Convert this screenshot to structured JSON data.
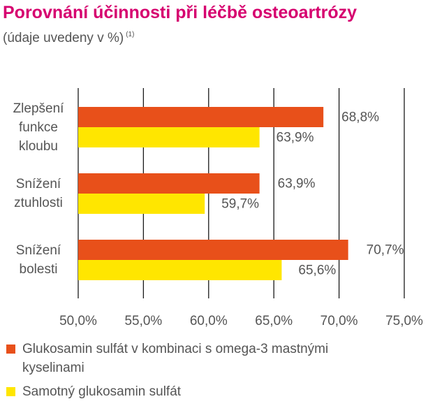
{
  "chart_data": {
    "type": "bar",
    "orientation": "horizontal",
    "title": "Porovnání účinnosti při léčbě osteoartrózy",
    "subtitle": "(údaje uvedeny v %)",
    "subtitle_note": "(1)",
    "categories": [
      "Zlepšení funkce kloubu",
      "Snížení ztuhlosti",
      "Snížení bolesti"
    ],
    "category_lines": [
      [
        "Zlepšení",
        "funkce",
        "kloubu"
      ],
      [
        "Snížení",
        "ztuhlosti"
      ],
      [
        "Snížení",
        "bolesti"
      ]
    ],
    "series": [
      {
        "name": "Glukosamin sulfát v kombinaci s omega-3 mastnými kyselinami",
        "name_lines": [
          "Glukosamin sulfát v kombinaci s omega-3 mastnými",
          "kyselinami"
        ],
        "color": "#e8501a",
        "values": [
          68.8,
          63.9,
          70.7
        ],
        "labels": [
          "68,8%",
          "63,9%",
          "70,7%"
        ]
      },
      {
        "name": "Samotný glukosamin sulfát",
        "name_lines": [
          "Samotný glukosamin sulfát"
        ],
        "color": "#ffe600",
        "values": [
          63.9,
          59.7,
          65.6
        ],
        "labels": [
          "63,9%",
          "59,7%",
          "65,6%"
        ]
      }
    ],
    "xlim": [
      50,
      75
    ],
    "xticks": [
      50,
      55,
      60,
      65,
      70,
      75
    ],
    "xtick_labels": [
      "50,0%",
      "55,0%",
      "60,0%",
      "65,0%",
      "70,0%",
      "75,0%"
    ],
    "grid": true,
    "legend_position": "bottom"
  }
}
